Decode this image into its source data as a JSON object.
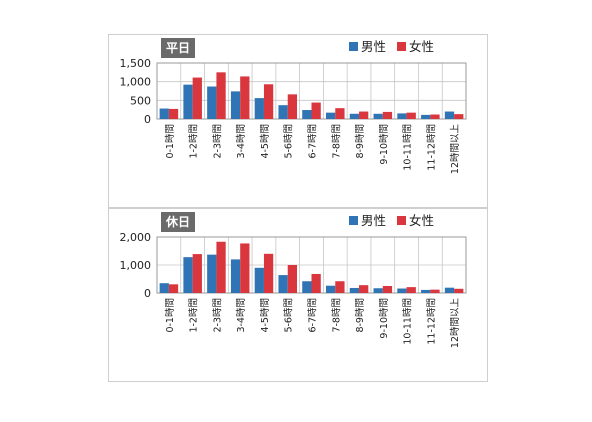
{
  "colors": {
    "male": "#2f75b5",
    "female": "#d9363e",
    "title_bg": "#6a6a6a",
    "grid": "#c6c6c6"
  },
  "chart_data": [
    {
      "type": "bar",
      "title": "平日",
      "categories": [
        "0-1時間",
        "1-2時間",
        "2-3時間",
        "3-4時間",
        "4-5時間",
        "5-6時間",
        "6-7時間",
        "7-8時間",
        "8-9時間",
        "9-10時間",
        "10-11時間",
        "11-12時間",
        "12時間以上"
      ],
      "series": [
        {
          "name": "男性",
          "values": [
            280,
            920,
            870,
            740,
            560,
            370,
            240,
            170,
            140,
            140,
            150,
            110,
            200
          ]
        },
        {
          "name": "女性",
          "values": [
            270,
            1110,
            1250,
            1140,
            930,
            660,
            440,
            290,
            200,
            190,
            170,
            120,
            130
          ]
        }
      ],
      "yticks": [
        "0",
        "500",
        "1,000",
        "1,500"
      ],
      "ylim": [
        0,
        1500
      ],
      "grid": true,
      "legend_position": "top-right"
    },
    {
      "type": "bar",
      "title": "休日",
      "categories": [
        "0-1時間",
        "1-2時間",
        "2-3時間",
        "3-4時間",
        "4-5時間",
        "5-6時間",
        "6-7時間",
        "7-8時間",
        "8-9時間",
        "9-10時間",
        "10-11時間",
        "11-12時間",
        "12時間以上"
      ],
      "series": [
        {
          "name": "男性",
          "values": [
            350,
            1280,
            1370,
            1200,
            900,
            640,
            420,
            260,
            180,
            170,
            160,
            110,
            190
          ]
        },
        {
          "name": "女性",
          "values": [
            310,
            1390,
            1830,
            1770,
            1400,
            1000,
            680,
            420,
            280,
            250,
            210,
            120,
            150
          ]
        }
      ],
      "yticks": [
        "0",
        "1,000",
        "2,000"
      ],
      "ylim": [
        0,
        2000
      ],
      "grid": true,
      "legend_position": "top-right"
    }
  ]
}
